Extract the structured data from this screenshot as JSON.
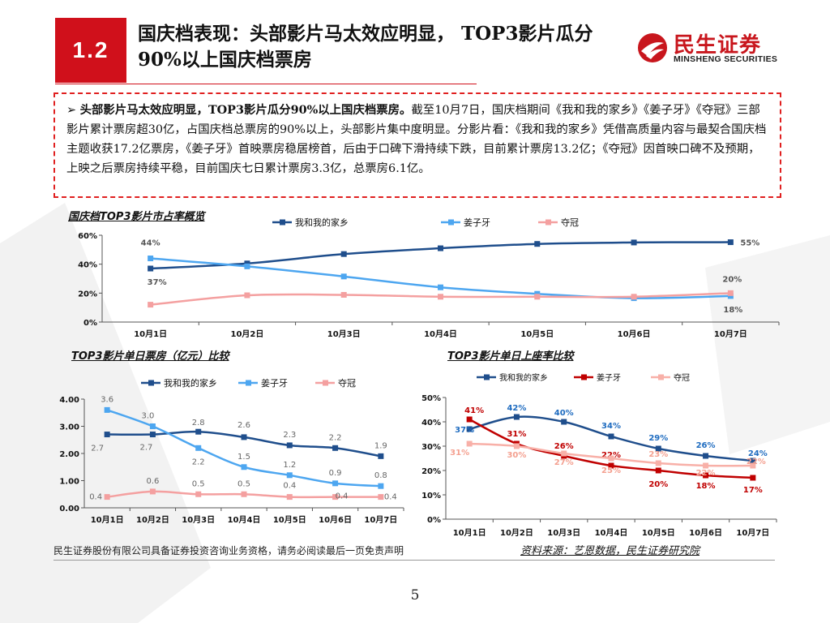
{
  "header": {
    "section_number": "1.2",
    "title": "国庆档表现：头部影片马太效应明显， TOP3影片瓜分90%以上国庆档票房",
    "logo_cn": "民生证券",
    "logo_en": "MINSHENG SECURITIES"
  },
  "summary": {
    "bold": "头部影片马太效应明显，TOP3影片瓜分90%以上国庆档票房。",
    "body": "截至10月7日，国庆档期间《我和我的家乡》《姜子牙》《夺冠》三部影片累计票房超30亿，占国庆档总票房的90%以上，头部影片集中度明显。分影片看：《我和我的家乡》凭借高质量内容与最契合国庆档主题收获17.2亿票房，《姜子牙》首映票房稳居榜首，后由于口碑下滑持续下跌，目前累计票房13.2亿；《夺冠》因首映口碑不及预期，上映之后票房持续平稳，目前国庆七日累计票房3.3亿，总票房6.1亿。"
  },
  "colors": {
    "accent": "#d0101b",
    "series1": "#1f4e8c",
    "series2": "#4da6f0",
    "series3": "#f4a0a0",
    "series2_right": "#c00000",
    "series3_right": "#f8b0a8"
  },
  "chart_data": [
    {
      "type": "line",
      "title": "国庆档TOP3影片市占率概览",
      "categories": [
        "10月1日",
        "10月2日",
        "10月3日",
        "10月4日",
        "10月5日",
        "10月6日",
        "10月7日"
      ],
      "yticks": [
        "0%",
        "20%",
        "40%",
        "60%"
      ],
      "ylim": [
        0,
        60
      ],
      "grid": false,
      "legend": "top",
      "series": [
        {
          "name": "我和我的家乡",
          "values": [
            37,
            40.5,
            47,
            51,
            54,
            55,
            55.2
          ],
          "color": "#1f4e8c"
        },
        {
          "name": "姜子牙",
          "values": [
            44,
            38.5,
            31.5,
            24,
            19.5,
            16.5,
            18
          ],
          "color": "#4da6f0"
        },
        {
          "name": "夺冠",
          "values": [
            12,
            18.5,
            18.8,
            17.5,
            17.5,
            17.5,
            20
          ],
          "color": "#f4a0a0"
        }
      ],
      "labels": [
        {
          "series": 1,
          "index": 0,
          "text": "44%"
        },
        {
          "series": 0,
          "index": 0,
          "text": "37%"
        },
        {
          "series": 0,
          "index": 6,
          "text": "55%"
        },
        {
          "series": 2,
          "index": 6,
          "text": "20%"
        },
        {
          "series": 1,
          "index": 6,
          "text": "18%"
        }
      ]
    },
    {
      "type": "line",
      "title": "TOP3影片单日票房（亿元）比较",
      "categories": [
        "10月1日",
        "10月2日",
        "10月3日",
        "10月4日",
        "10月5日",
        "10月6日",
        "10月7日"
      ],
      "yticks": [
        "0.00",
        "1.00",
        "2.00",
        "3.00",
        "4.00"
      ],
      "ylim": [
        0,
        4
      ],
      "grid": false,
      "legend": "top",
      "series": [
        {
          "name": "我和我的家乡",
          "values": [
            2.7,
            2.7,
            2.8,
            2.6,
            2.3,
            2.2,
            1.9
          ],
          "labels": [
            "2.7",
            "2.7",
            "2.8",
            "2.6",
            "2.3",
            "2.2",
            "1.9"
          ],
          "color": "#1f4e8c"
        },
        {
          "name": "姜子牙",
          "values": [
            3.6,
            3.0,
            2.2,
            1.5,
            1.2,
            0.9,
            0.8
          ],
          "labels": [
            "3.6",
            "3.0",
            "2.2",
            "1.5",
            "1.2",
            "0.9",
            "0.8"
          ],
          "color": "#4da6f0"
        },
        {
          "name": "夺冠",
          "values": [
            0.4,
            0.6,
            0.5,
            0.5,
            0.4,
            0.4,
            0.4
          ],
          "labels": [
            "0.4",
            "0.6",
            "0.5",
            "0.5",
            "0.4",
            "0.4",
            "0.4"
          ],
          "color": "#f4a0a0"
        }
      ]
    },
    {
      "type": "line",
      "title": "TOP3影片单日上座率比较",
      "categories": [
        "10月1日",
        "10月2日",
        "10月3日",
        "10月4日",
        "10月5日",
        "10月6日",
        "10月7日"
      ],
      "yticks": [
        "0%",
        "10%",
        "20%",
        "30%",
        "40%",
        "50%"
      ],
      "ylim": [
        0,
        50
      ],
      "grid": false,
      "legend": "top",
      "series": [
        {
          "name": "我和我的家乡",
          "values": [
            37,
            42,
            40,
            34,
            29,
            26,
            24
          ],
          "labels": [
            "37%",
            "42%",
            "40%",
            "34%",
            "29%",
            "26%",
            "24%"
          ],
          "color": "#1f4e8c"
        },
        {
          "name": "姜子牙",
          "values": [
            41,
            31,
            26,
            22,
            20,
            18,
            17
          ],
          "labels": [
            "41%",
            "31%",
            "26%",
            "22%",
            "20%",
            "18%",
            "17%"
          ],
          "color": "#c00000"
        },
        {
          "name": "夺冠",
          "values": [
            31,
            30,
            27,
            25,
            23,
            22,
            22
          ],
          "labels": [
            "31%",
            "30%",
            "27%",
            "25%",
            "23%",
            "22%",
            "22%"
          ],
          "color": "#f8b0a8"
        }
      ]
    }
  ],
  "footer": {
    "disclaimer": "民生证券股份有限公司具备证券投资咨询业务资格，请务必阅读最后一页免责声明",
    "source": "资料来源：艺恩数据，民生证券研究院",
    "page": "5"
  }
}
